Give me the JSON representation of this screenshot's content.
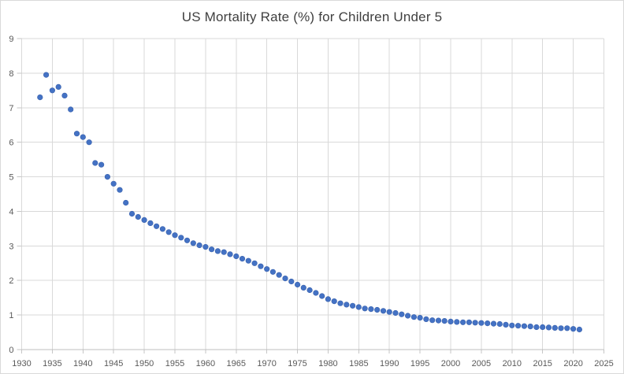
{
  "chart_data": {
    "type": "scatter",
    "title": "US Mortality Rate (%) for Children Under 5",
    "xlabel": "",
    "ylabel": "",
    "xlim": [
      1930,
      2025
    ],
    "ylim": [
      0,
      9
    ],
    "x_ticks": [
      1930,
      1935,
      1940,
      1945,
      1950,
      1955,
      1960,
      1965,
      1970,
      1975,
      1980,
      1985,
      1990,
      1995,
      2000,
      2005,
      2010,
      2015,
      2020,
      2025
    ],
    "y_ticks": [
      0,
      1,
      2,
      3,
      4,
      5,
      6,
      7,
      8,
      9
    ],
    "grid": true,
    "legend": "none",
    "x": [
      1933,
      1934,
      1935,
      1936,
      1937,
      1938,
      1939,
      1940,
      1941,
      1942,
      1943,
      1944,
      1945,
      1946,
      1947,
      1948,
      1949,
      1950,
      1951,
      1952,
      1953,
      1954,
      1955,
      1956,
      1957,
      1958,
      1959,
      1960,
      1961,
      1962,
      1963,
      1964,
      1965,
      1966,
      1967,
      1968,
      1969,
      1970,
      1971,
      1972,
      1973,
      1974,
      1975,
      1976,
      1977,
      1978,
      1979,
      1980,
      1981,
      1982,
      1983,
      1984,
      1985,
      1986,
      1987,
      1988,
      1989,
      1990,
      1991,
      1992,
      1993,
      1994,
      1995,
      1996,
      1997,
      1998,
      1999,
      2000,
      2001,
      2002,
      2003,
      2004,
      2005,
      2006,
      2007,
      2008,
      2009,
      2010,
      2011,
      2012,
      2013,
      2014,
      2015,
      2016,
      2017,
      2018,
      2019,
      2020,
      2021
    ],
    "y": [
      7.3,
      7.95,
      7.5,
      7.6,
      7.35,
      6.95,
      6.25,
      6.15,
      6.0,
      5.4,
      5.35,
      5.0,
      4.8,
      4.62,
      4.25,
      3.93,
      3.84,
      3.75,
      3.66,
      3.57,
      3.49,
      3.4,
      3.31,
      3.24,
      3.16,
      3.08,
      3.02,
      2.97,
      2.9,
      2.85,
      2.82,
      2.76,
      2.7,
      2.63,
      2.57,
      2.5,
      2.41,
      2.33,
      2.25,
      2.16,
      2.06,
      1.97,
      1.88,
      1.79,
      1.72,
      1.64,
      1.55,
      1.46,
      1.4,
      1.34,
      1.3,
      1.27,
      1.23,
      1.19,
      1.17,
      1.15,
      1.12,
      1.09,
      1.06,
      1.02,
      0.98,
      0.94,
      0.92,
      0.88,
      0.85,
      0.84,
      0.83,
      0.81,
      0.8,
      0.79,
      0.79,
      0.78,
      0.77,
      0.76,
      0.75,
      0.74,
      0.72,
      0.7,
      0.69,
      0.68,
      0.67,
      0.65,
      0.65,
      0.64,
      0.63,
      0.62,
      0.62,
      0.6,
      0.58
    ]
  },
  "style": {
    "marker_color": "#4472C4",
    "marker_border_color": "#3A62AD",
    "gridline_color": "#D9D9D9",
    "axis_line_color": "#BFBFBF",
    "tick_color": "#C6C6C6",
    "tick_label_color": "#595959",
    "title_color": "#404040",
    "background_color": "#FFFFFF",
    "frame_border_color": "#D9D9D9"
  }
}
